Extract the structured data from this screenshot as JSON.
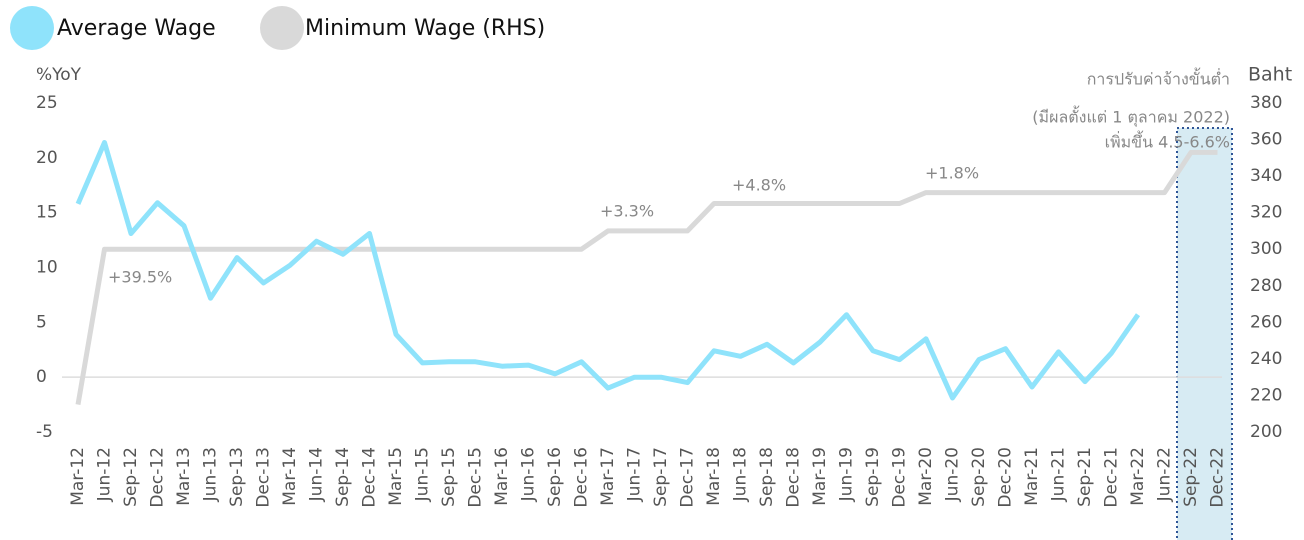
{
  "chart_data": {
    "type": "line",
    "y_label": "%YoY",
    "y2_label": "Baht",
    "categories": [
      "Mar-12",
      "Jun-12",
      "Sep-12",
      "Dec-12",
      "Mar-13",
      "Jun-13",
      "Sep-13",
      "Dec-13",
      "Mar-14",
      "Jun-14",
      "Sep-14",
      "Dec-14",
      "Mar-15",
      "Jun-15",
      "Sep-15",
      "Dec-15",
      "Mar-16",
      "Jun-16",
      "Sep-16",
      "Dec-16",
      "Mar-17",
      "Jun-17",
      "Sep-17",
      "Dec-17",
      "Mar-18",
      "Jun-18",
      "Sep-18",
      "Dec-18",
      "Mar-19",
      "Jun-19",
      "Sep-19",
      "Dec-19",
      "Mar-20",
      "Jun-20",
      "Sep-20",
      "Dec-20",
      "Mar-21",
      "Jun-21",
      "Sep-21",
      "Dec-21",
      "Mar-22",
      "Jun-22",
      "Sep-22",
      "Dec-22"
    ],
    "series": [
      {
        "name": "Average Wage",
        "color": "#8fe3fb",
        "values": [
          15.8,
          21.4,
          13.1,
          15.9,
          13.8,
          7.2,
          10.9,
          8.6,
          10.2,
          12.4,
          11.2,
          13.1,
          3.9,
          1.3,
          1.4,
          1.4,
          1.0,
          1.1,
          0.3,
          1.4,
          -1.0,
          0,
          0,
          -0.5,
          2.4,
          1.9,
          3.0,
          1.3,
          3.2,
          5.7,
          2.4,
          1.6,
          3.5,
          -1.9,
          1.6,
          2.6,
          -0.9,
          2.3,
          -0.4,
          2.2,
          5.7,
          null,
          null,
          null
        ]
      },
      {
        "name": "Minimum Wage (RHS)",
        "color": "#d9d9d9",
        "axis": "y2",
        "values": [
          215,
          300,
          300,
          300,
          300,
          300,
          300,
          300,
          300,
          300,
          300,
          300,
          300,
          300,
          300,
          300,
          300,
          300,
          300,
          300,
          310,
          310,
          310,
          310,
          325,
          325,
          325,
          325,
          325,
          325,
          325,
          325,
          331,
          331,
          331,
          331,
          331,
          331,
          331,
          331,
          331,
          331,
          353,
          353
        ]
      }
    ],
    "ylim": [
      -5,
      25
    ],
    "yticks": [
      -5,
      0,
      5,
      10,
      15,
      20,
      25
    ],
    "y2lim": [
      200,
      380
    ],
    "y2ticks": [
      200,
      220,
      240,
      260,
      280,
      300,
      320,
      340,
      360,
      380
    ],
    "annotations": [
      "+39.5%",
      "+3.3%",
      "+4.8%",
      "+1.8%",
      "การปรับค่าจ้างขั้นต่ำ",
      "(มีผลตั้งแต่ 1 ตุลาคม 2022)",
      "เพิ่มขึ้น 4.5-6.6%"
    ]
  }
}
